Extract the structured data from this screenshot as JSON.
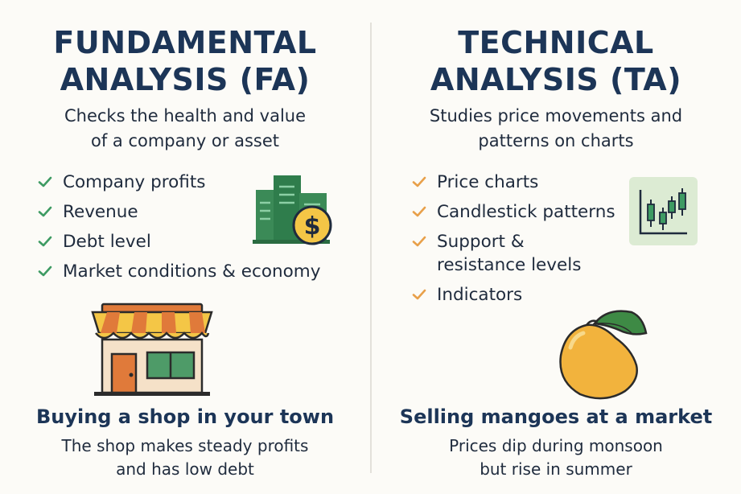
{
  "left": {
    "title_line1": "FUNDAMENTAL",
    "title_line2": "ANALYSIS (FA)",
    "subtitle_line1": "Checks the health and value",
    "subtitle_line2": "of a company or asset",
    "items": [
      "Company profits",
      "Revenue",
      "Debt level",
      "Market conditions & economy"
    ],
    "check_color": "#3e9b63",
    "icon_building": "building-with-dollar-coin-icon",
    "icon_shop": "shop-storefront-icon",
    "example_title": "Buying a shop in your town",
    "example_line1": "The shop makes steady profits",
    "example_line2": "and has low debt"
  },
  "right": {
    "title_line1": "TECHNICAL",
    "title_line2": "ANALYSIS (TA)",
    "subtitle_line1": "Studies price movements and",
    "subtitle_line2": "patterns on charts",
    "items": [
      "Price charts",
      "Candlestick patterns",
      "Support &",
      "resistance levels",
      "Indicators"
    ],
    "check_color": "#e8a04a",
    "icon_chart": "candlestick-chart-icon",
    "icon_fruit": "mango-icon",
    "example_title": "Selling mangoes at a market",
    "example_line1": "Prices dip during monsoon",
    "example_line2": "but rise in summer"
  },
  "colors": {
    "heading": "#1c3557",
    "text": "#1f2b3d",
    "background": "#fcfbf7"
  }
}
